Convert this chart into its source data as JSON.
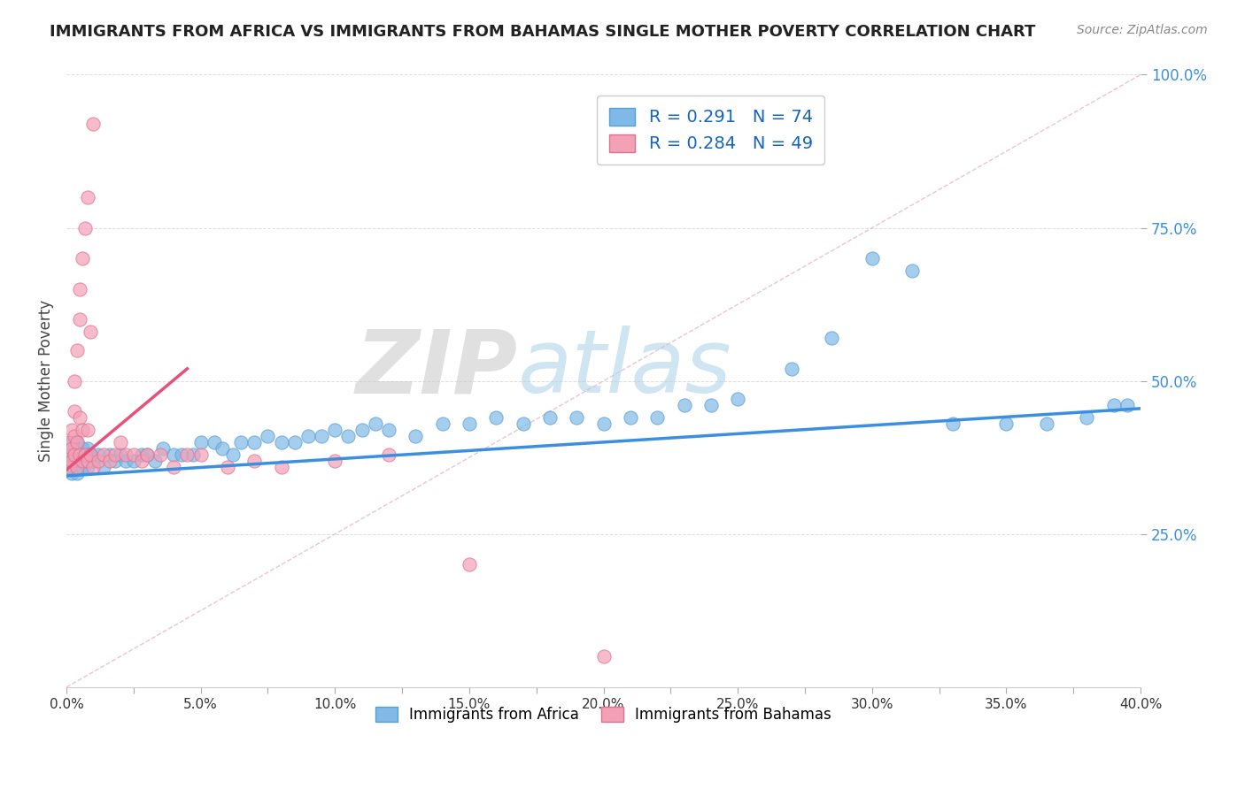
{
  "title": "IMMIGRANTS FROM AFRICA VS IMMIGRANTS FROM BAHAMAS SINGLE MOTHER POVERTY CORRELATION CHART",
  "source": "Source: ZipAtlas.com",
  "ylabel": "Single Mother Poverty",
  "xlim": [
    0.0,
    0.4
  ],
  "ylim": [
    0.0,
    1.0
  ],
  "xtick_labels": [
    "0.0%",
    "",
    "5.0%",
    "",
    "10.0%",
    "",
    "15.0%",
    "",
    "20.0%",
    "",
    "25.0%",
    "",
    "30.0%",
    "",
    "35.0%",
    "",
    "40.0%"
  ],
  "xtick_vals": [
    0.0,
    0.025,
    0.05,
    0.075,
    0.1,
    0.125,
    0.15,
    0.175,
    0.2,
    0.225,
    0.25,
    0.275,
    0.3,
    0.325,
    0.35,
    0.375,
    0.4
  ],
  "ytick_labels": [
    "25.0%",
    "50.0%",
    "75.0%",
    "100.0%"
  ],
  "ytick_vals": [
    0.25,
    0.5,
    0.75,
    1.0
  ],
  "africa_color": "#7EB9E8",
  "africa_edge_color": "#5A9FD4",
  "bahamas_color": "#F4A0B5",
  "bahamas_edge_color": "#E07090",
  "africa_line_color": "#3A8FE0",
  "bahamas_line_color": "#E8507A",
  "ref_line_color": "#DDAAAA",
  "africa_R": 0.291,
  "africa_N": 74,
  "bahamas_R": 0.284,
  "bahamas_N": 49,
  "legend_label_africa": "Immigrants from Africa",
  "legend_label_bahamas": "Immigrants from Bahamas",
  "watermark": "ZIPatlas",
  "background_color": "#ffffff",
  "africa_scatter_x": [
    0.001,
    0.001,
    0.002,
    0.002,
    0.002,
    0.003,
    0.003,
    0.003,
    0.004,
    0.004,
    0.004,
    0.005,
    0.005,
    0.006,
    0.006,
    0.007,
    0.007,
    0.008,
    0.008,
    0.009,
    0.01,
    0.012,
    0.014,
    0.016,
    0.018,
    0.02,
    0.022,
    0.025,
    0.028,
    0.03,
    0.033,
    0.036,
    0.04,
    0.043,
    0.047,
    0.05,
    0.055,
    0.058,
    0.062,
    0.065,
    0.07,
    0.075,
    0.08,
    0.085,
    0.09,
    0.095,
    0.1,
    0.105,
    0.11,
    0.115,
    0.12,
    0.13,
    0.14,
    0.15,
    0.16,
    0.17,
    0.18,
    0.19,
    0.2,
    0.21,
    0.22,
    0.23,
    0.24,
    0.25,
    0.27,
    0.285,
    0.3,
    0.315,
    0.33,
    0.35,
    0.365,
    0.38,
    0.39,
    0.395
  ],
  "africa_scatter_y": [
    0.36,
    0.38,
    0.37,
    0.4,
    0.35,
    0.39,
    0.37,
    0.36,
    0.38,
    0.4,
    0.35,
    0.37,
    0.38,
    0.36,
    0.39,
    0.38,
    0.37,
    0.39,
    0.36,
    0.38,
    0.37,
    0.38,
    0.36,
    0.38,
    0.37,
    0.38,
    0.37,
    0.37,
    0.38,
    0.38,
    0.37,
    0.39,
    0.38,
    0.38,
    0.38,
    0.4,
    0.4,
    0.39,
    0.38,
    0.4,
    0.4,
    0.41,
    0.4,
    0.4,
    0.41,
    0.41,
    0.42,
    0.41,
    0.42,
    0.43,
    0.42,
    0.41,
    0.43,
    0.43,
    0.44,
    0.43,
    0.44,
    0.44,
    0.43,
    0.44,
    0.44,
    0.46,
    0.46,
    0.47,
    0.52,
    0.57,
    0.7,
    0.68,
    0.43,
    0.43,
    0.43,
    0.44,
    0.46,
    0.46
  ],
  "bahamas_scatter_x": [
    0.001,
    0.001,
    0.001,
    0.002,
    0.002,
    0.002,
    0.003,
    0.003,
    0.003,
    0.003,
    0.004,
    0.004,
    0.004,
    0.005,
    0.005,
    0.005,
    0.005,
    0.006,
    0.006,
    0.006,
    0.007,
    0.007,
    0.008,
    0.008,
    0.008,
    0.009,
    0.009,
    0.01,
    0.01,
    0.012,
    0.014,
    0.016,
    0.018,
    0.02,
    0.022,
    0.025,
    0.028,
    0.03,
    0.035,
    0.04,
    0.045,
    0.05,
    0.06,
    0.07,
    0.08,
    0.1,
    0.12,
    0.15,
    0.2
  ],
  "bahamas_scatter_y": [
    0.36,
    0.38,
    0.4,
    0.37,
    0.39,
    0.42,
    0.38,
    0.41,
    0.45,
    0.5,
    0.36,
    0.4,
    0.55,
    0.38,
    0.44,
    0.6,
    0.65,
    0.37,
    0.42,
    0.7,
    0.38,
    0.75,
    0.37,
    0.42,
    0.8,
    0.38,
    0.58,
    0.36,
    0.92,
    0.37,
    0.38,
    0.37,
    0.38,
    0.4,
    0.38,
    0.38,
    0.37,
    0.38,
    0.38,
    0.36,
    0.38,
    0.38,
    0.36,
    0.37,
    0.36,
    0.37,
    0.38,
    0.2,
    0.05
  ],
  "africa_trendline_x": [
    0.0,
    0.4
  ],
  "africa_trendline_y": [
    0.345,
    0.455
  ],
  "bahamas_trendline_x": [
    0.0,
    0.045
  ],
  "bahamas_trendline_y": [
    0.355,
    0.52
  ]
}
